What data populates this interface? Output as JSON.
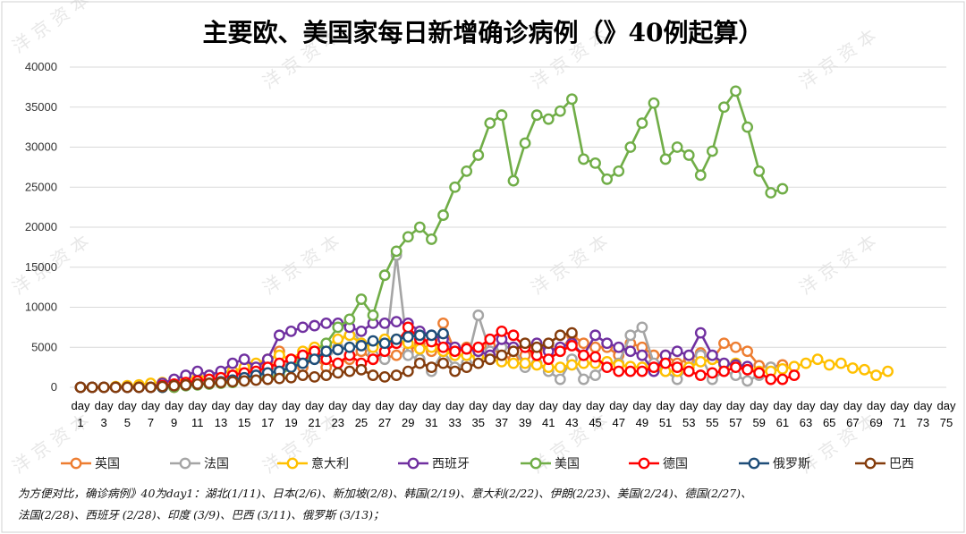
{
  "chart_data": {
    "type": "line",
    "title": "主要欧、美国家每日新增确诊病例（》40例起算）",
    "ylim": [
      0,
      40000
    ],
    "yticks": [
      0,
      5000,
      10000,
      15000,
      20000,
      25000,
      30000,
      35000,
      40000
    ],
    "x_labels": [
      "day 1",
      "day 3",
      "day 5",
      "day 7",
      "day 9",
      "day 11",
      "day 13",
      "day 15",
      "day 17",
      "day 19",
      "day 21",
      "day 23",
      "day 25",
      "day 27",
      "day 29",
      "day 31",
      "day 33",
      "day 35",
      "day 37",
      "day 39",
      "day 41",
      "day 43",
      "day 45",
      "day 47",
      "day 49",
      "day 51",
      "day 53",
      "day 55",
      "day 57",
      "day 59",
      "day 61",
      "day 63",
      "day 65",
      "day 67",
      "day 69",
      "day 71",
      "day 73",
      "day 75"
    ],
    "x_range": [
      1,
      75
    ],
    "legend_position": "bottom",
    "note": "为方便对比，确诊病例》40为day1：湖北(1/11)、日本(2/6)、新加坡(2/8)、韩国(2/19)、意大利(2/22)、伊朗(2/23)、美国(2/24)、德国(2/27)、法国(2/28)、西班牙 (2/28)、印度 (3/9)、巴西 (3/11)、俄罗斯 (3/13)；",
    "watermark": "洋 京 资 本",
    "series": [
      {
        "name": "英国",
        "color": "#ED7D31",
        "start_day": 1,
        "values": [
          0,
          0,
          0,
          0,
          0,
          0,
          0,
          0,
          0,
          300,
          600,
          1000,
          1000,
          1500,
          2000,
          2500,
          3000,
          4500,
          3000,
          2500,
          3700,
          2500,
          3000,
          3500,
          4500,
          3500,
          3700,
          4000,
          4500,
          5500,
          4500,
          8000,
          4500,
          5000,
          4500,
          5200,
          4000,
          3500,
          4000,
          4500,
          5000,
          4500,
          6500,
          5500,
          5000,
          5000,
          4000,
          5500,
          5000,
          4000,
          4000,
          3000,
          3500,
          4300,
          3500,
          5500,
          5000,
          4500,
          2700,
          2500,
          2800
        ]
      },
      {
        "name": "法国",
        "color": "#A5A5A5",
        "start_day": 1,
        "values": [
          0,
          0,
          0,
          0,
          0,
          0,
          0,
          100,
          200,
          300,
          400,
          600,
          800,
          1000,
          1200,
          1500,
          2000,
          2500,
          3000,
          3500,
          4000,
          3500,
          5000,
          7500,
          5500,
          4000,
          3500,
          16500,
          4000,
          3500,
          2000,
          4500,
          2500,
          3000,
          9000,
          4500,
          5000,
          5000,
          2500,
          3000,
          2000,
          1000,
          3500,
          1000,
          1500,
          3000,
          3000,
          6500,
          7500,
          3000,
          2000,
          1000,
          2500,
          4000,
          1000,
          2000,
          1500,
          800,
          1500,
          2500
        ]
      },
      {
        "name": "意大利",
        "color": "#FFC000",
        "start_day": 1,
        "values": [
          0,
          0,
          0,
          100,
          200,
          300,
          500,
          600,
          800,
          1000,
          1200,
          1500,
          1800,
          2000,
          2500,
          3000,
          3500,
          4000,
          3500,
          4500,
          5000,
          5200,
          6000,
          6500,
          5500,
          5000,
          6000,
          6000,
          5500,
          4800,
          5000,
          4500,
          4000,
          4000,
          3800,
          3500,
          3200,
          3000,
          3000,
          2800,
          2500,
          2500,
          2800,
          3000,
          3000,
          3200,
          2800,
          2600,
          2500,
          2300,
          2000,
          2000,
          2500,
          3200,
          3500,
          2800,
          3000,
          2500,
          2000,
          2000,
          2300,
          2600,
          3000,
          3500,
          2800,
          3000,
          2400,
          2200,
          1500,
          2000
        ]
      },
      {
        "name": "西班牙",
        "color": "#7030A0",
        "start_day": 1,
        "values": [
          0,
          0,
          0,
          0,
          0,
          0,
          0,
          500,
          1000,
          1500,
          2000,
          1500,
          2000,
          3000,
          3500,
          2500,
          3500,
          6500,
          7000,
          7500,
          7700,
          8000,
          8000,
          7500,
          7000,
          8000,
          8000,
          8200,
          8000,
          7000,
          6500,
          6000,
          5000,
          4800,
          4500,
          4000,
          6000,
          5000,
          5000,
          5500,
          4500,
          5000,
          5500,
          4000,
          6500,
          5500,
          5000,
          4500,
          4000,
          2000,
          4000,
          4500,
          4000,
          6800,
          4000,
          3000,
          2800,
          2600
        ]
      },
      {
        "name": "美国",
        "color": "#70AD47",
        "start_day": 1,
        "values": [
          0,
          0,
          0,
          0,
          0,
          0,
          0,
          0,
          0,
          200,
          300,
          400,
          500,
          600,
          800,
          1000,
          1200,
          1500,
          2500,
          3500,
          4500,
          5500,
          7500,
          8500,
          11000,
          9000,
          14000,
          17000,
          18800,
          20000,
          18500,
          21500,
          25000,
          27000,
          29000,
          33000,
          34000,
          25800,
          30500,
          34000,
          33500,
          34500,
          36000,
          28500,
          28000,
          26000,
          27000,
          30000,
          33000,
          35500,
          28500,
          30000,
          29000,
          26500,
          29500,
          35000,
          37000,
          32500,
          27000,
          24300,
          24800
        ]
      },
      {
        "name": "德国",
        "color": "#FF0000",
        "start_day": 1,
        "values": [
          0,
          0,
          0,
          0,
          0,
          0,
          0,
          200,
          400,
          600,
          800,
          1000,
          1200,
          1500,
          1800,
          2000,
          2500,
          3000,
          3500,
          4000,
          4500,
          3500,
          3000,
          4000,
          3000,
          3500,
          4500,
          5500,
          7500,
          6000,
          5700,
          5000,
          4500,
          4800,
          5000,
          6000,
          7000,
          6500,
          5000,
          4000,
          3500,
          4500,
          5200,
          4000,
          3800,
          2500,
          2000,
          2000,
          2000,
          2500,
          3000,
          2500,
          2000,
          1500,
          1800,
          2000,
          2500,
          2200,
          1800,
          1000,
          1000,
          1500
        ]
      },
      {
        "name": "俄罗斯",
        "color": "#1F4E79",
        "start_day": 1,
        "values": [
          0,
          0,
          0,
          0,
          0,
          0,
          0,
          0,
          200,
          300,
          400,
          500,
          700,
          900,
          1200,
          1500,
          1800,
          2000,
          2500,
          3000,
          3500,
          4500,
          4700,
          5000,
          5200,
          5800,
          5500,
          6000,
          6300,
          6500,
          6500,
          6700
        ]
      },
      {
        "name": "巴西",
        "color": "#843C0C",
        "start_day": 1,
        "values": [
          0,
          0,
          0,
          0,
          0,
          0,
          0,
          100,
          200,
          300,
          400,
          500,
          600,
          700,
          800,
          900,
          1000,
          1100,
          1200,
          1500,
          1300,
          1500,
          1800,
          2000,
          2200,
          1500,
          1300,
          1500,
          2000,
          3000,
          2500,
          3000,
          2000,
          2500,
          3000,
          3500,
          4000,
          4500,
          5500,
          5000,
          5500,
          6500,
          6800
        ]
      }
    ]
  }
}
